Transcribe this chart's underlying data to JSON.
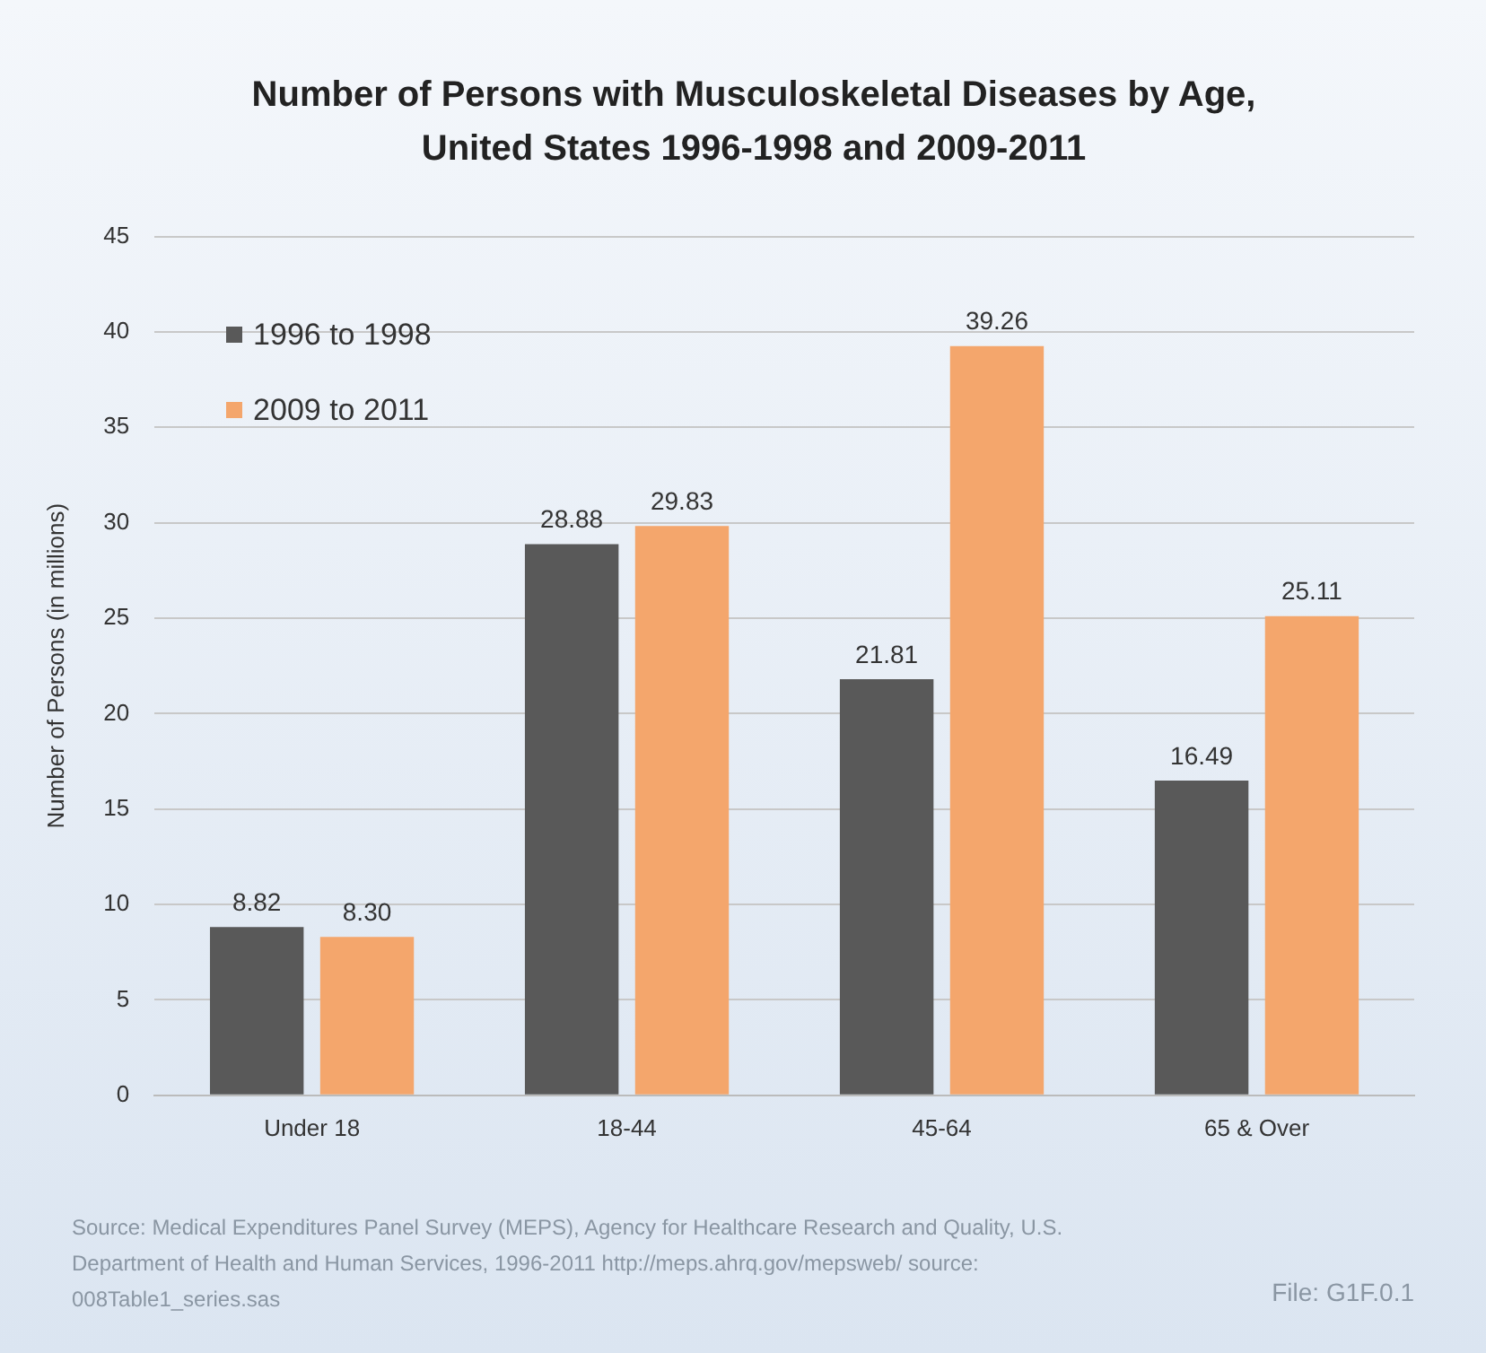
{
  "chart_data": {
    "type": "bar",
    "title": "Number of Persons with Musculoskeletal Diseases by Age, United States 1996-1998 and 2009-2011",
    "ylabel": "Number of Persons (in millions)",
    "categories": [
      "Under 18",
      "18-44",
      "45-64",
      "65 & Over"
    ],
    "series": [
      {
        "name": "1996 to 1998",
        "color": "#595959",
        "values": [
          8.82,
          28.88,
          21.81,
          16.49
        ],
        "value_labels": [
          "8.82",
          "28.88",
          "21.81",
          "16.49"
        ]
      },
      {
        "name": "2009 to 2011",
        "color": "#f4a66c",
        "values": [
          8.3,
          29.83,
          39.26,
          25.11
        ],
        "value_labels": [
          "8.30",
          "29.83",
          "39.26",
          "25.11"
        ]
      }
    ],
    "ylim": [
      0,
      45
    ],
    "yticks": [
      0,
      5,
      10,
      15,
      20,
      25,
      30,
      35,
      40,
      45
    ],
    "grid": "y",
    "legend": "top left",
    "annotations": [
      "Source: Medical Expenditures Panel Survey (MEPS), Agency for Healthcare Research and Quality, U.S. Department of Health and Human Services, 1996-2011 http://meps.ahrq.gov/mepsweb/ source: 008Table1_series.sas",
      "File: G1F.0.1"
    ]
  }
}
